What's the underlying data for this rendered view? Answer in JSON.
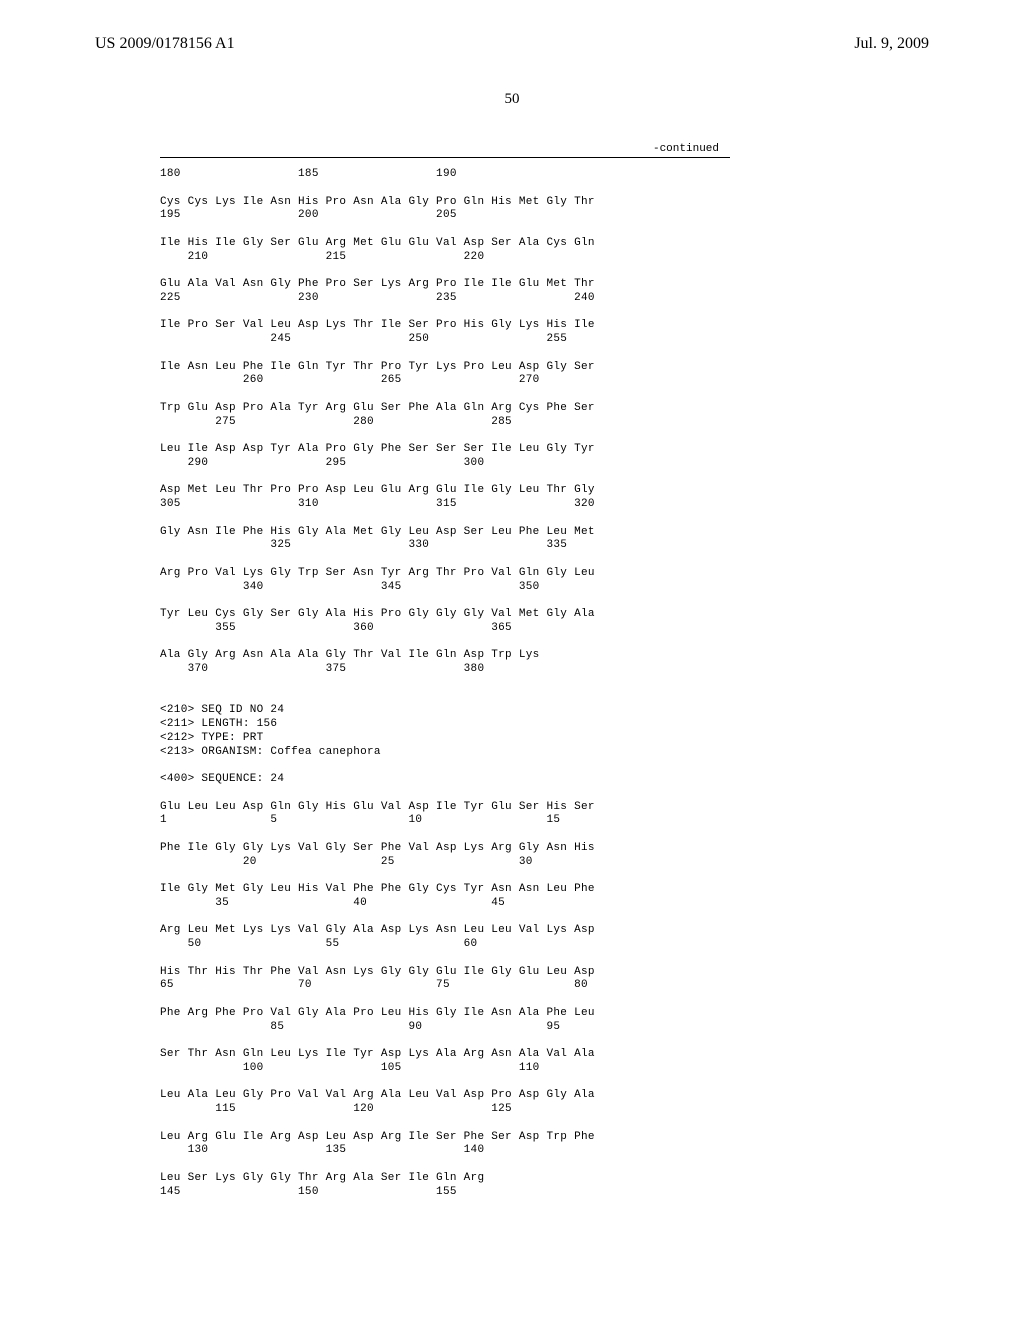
{
  "header": {
    "left": "US 2009/0178156 A1",
    "right": "Jul. 9, 2009"
  },
  "page_number": "50",
  "continued_label": "-continued",
  "sequence_blocks": [
    {
      "residues": "",
      "positions": "180                 185                 190"
    },
    {
      "residues": "Cys Cys Lys Ile Asn His Pro Asn Ala Gly Pro Gln His Met Gly Thr",
      "positions": "195                 200                 205"
    },
    {
      "residues": "Ile His Ile Gly Ser Glu Arg Met Glu Glu Val Asp Ser Ala Cys Gln",
      "positions": "    210                 215                 220"
    },
    {
      "residues": "Glu Ala Val Asn Gly Phe Pro Ser Lys Arg Pro Ile Ile Glu Met Thr",
      "positions": "225                 230                 235                 240"
    },
    {
      "residues": "Ile Pro Ser Val Leu Asp Lys Thr Ile Ser Pro His Gly Lys His Ile",
      "positions": "                245                 250                 255"
    },
    {
      "residues": "Ile Asn Leu Phe Ile Gln Tyr Thr Pro Tyr Lys Pro Leu Asp Gly Ser",
      "positions": "            260                 265                 270"
    },
    {
      "residues": "Trp Glu Asp Pro Ala Tyr Arg Glu Ser Phe Ala Gln Arg Cys Phe Ser",
      "positions": "        275                 280                 285"
    },
    {
      "residues": "Leu Ile Asp Asp Tyr Ala Pro Gly Phe Ser Ser Ser Ile Leu Gly Tyr",
      "positions": "    290                 295                 300"
    },
    {
      "residues": "Asp Met Leu Thr Pro Pro Asp Leu Glu Arg Glu Ile Gly Leu Thr Gly",
      "positions": "305                 310                 315                 320"
    },
    {
      "residues": "Gly Asn Ile Phe His Gly Ala Met Gly Leu Asp Ser Leu Phe Leu Met",
      "positions": "                325                 330                 335"
    },
    {
      "residues": "Arg Pro Val Lys Gly Trp Ser Asn Tyr Arg Thr Pro Val Gln Gly Leu",
      "positions": "            340                 345                 350"
    },
    {
      "residues": "Tyr Leu Cys Gly Ser Gly Ala His Pro Gly Gly Gly Val Met Gly Ala",
      "positions": "        355                 360                 365"
    },
    {
      "residues": "Ala Gly Arg Asn Ala Ala Gly Thr Val Ile Gln Asp Trp Lys",
      "positions": "    370                 375                 380"
    }
  ],
  "seq_info": {
    "seq_id": "<210> SEQ ID NO 24",
    "length": "<211> LENGTH: 156",
    "type": "<212> TYPE: PRT",
    "organism": "<213> ORGANISM: Coffea canephora",
    "sequence_label": "<400> SEQUENCE: 24"
  },
  "sequence_blocks_2": [
    {
      "residues": "Glu Leu Leu Asp Gln Gly His Glu Val Asp Ile Tyr Glu Ser His Ser",
      "positions": "1               5                   10                  15"
    },
    {
      "residues": "Phe Ile Gly Gly Lys Val Gly Ser Phe Val Asp Lys Arg Gly Asn His",
      "positions": "            20                  25                  30"
    },
    {
      "residues": "Ile Gly Met Gly Leu His Val Phe Phe Gly Cys Tyr Asn Asn Leu Phe",
      "positions": "        35                  40                  45"
    },
    {
      "residues": "Arg Leu Met Lys Lys Val Gly Ala Asp Lys Asn Leu Leu Val Lys Asp",
      "positions": "    50                  55                  60"
    },
    {
      "residues": "His Thr His Thr Phe Val Asn Lys Gly Gly Glu Ile Gly Glu Leu Asp",
      "positions": "65                  70                  75                  80"
    },
    {
      "residues": "Phe Arg Phe Pro Val Gly Ala Pro Leu His Gly Ile Asn Ala Phe Leu",
      "positions": "                85                  90                  95"
    },
    {
      "residues": "Ser Thr Asn Gln Leu Lys Ile Tyr Asp Lys Ala Arg Asn Ala Val Ala",
      "positions": "            100                 105                 110"
    },
    {
      "residues": "Leu Ala Leu Gly Pro Val Val Arg Ala Leu Val Asp Pro Asp Gly Ala",
      "positions": "        115                 120                 125"
    },
    {
      "residues": "Leu Arg Glu Ile Arg Asp Leu Asp Arg Ile Ser Phe Ser Asp Trp Phe",
      "positions": "    130                 135                 140"
    },
    {
      "residues": "Leu Ser Lys Gly Gly Thr Arg Ala Ser Ile Gln Arg",
      "positions": "145                 150                 155"
    }
  ]
}
